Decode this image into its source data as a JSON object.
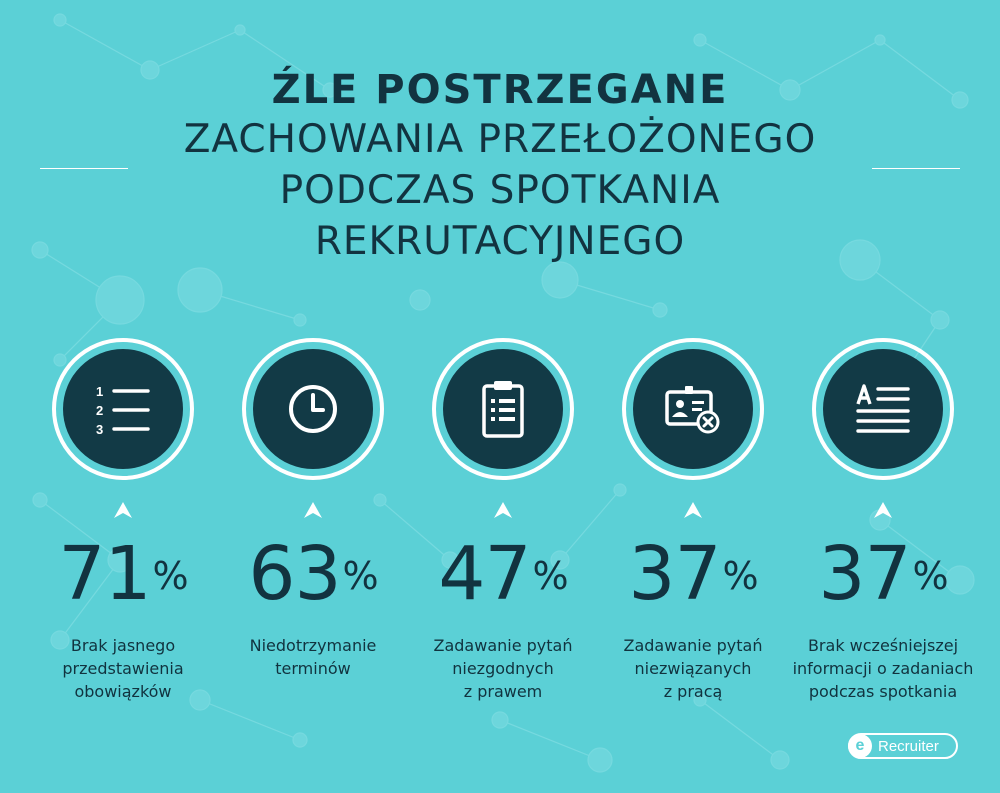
{
  "title": {
    "bold": "ŹLE POSTRZEGANE",
    "line1": "ZACHOWANIA PRZEŁOŻONEGO",
    "line2": "PODCZAS SPOTKANIA",
    "line3": "REKRUTACYJNEGO"
  },
  "colors": {
    "background": "#5bd0d6",
    "dark": "#123a46",
    "ring": "#ffffff"
  },
  "stats": [
    {
      "icon": "numbered-list-icon",
      "number": "71",
      "unit": "%",
      "caption": [
        "Brak jasnego",
        "przedstawienia",
        "obowiązków"
      ]
    },
    {
      "icon": "clock-icon",
      "number": "63",
      "unit": "%",
      "caption": [
        "Niedotrzymanie",
        "terminów"
      ]
    },
    {
      "icon": "clipboard-icon",
      "number": "47",
      "unit": "%",
      "caption": [
        "Zadawanie pytań",
        "niezgodnych",
        "z prawem"
      ]
    },
    {
      "icon": "id-card-remove-icon",
      "number": "37",
      "unit": "%",
      "caption": [
        "Zadawanie pytań",
        "niezwiązanych",
        "z pracą"
      ]
    },
    {
      "icon": "text-document-icon",
      "number": "37",
      "unit": "%",
      "caption": [
        "Brak wcześniejszej",
        "informacji o zadaniach",
        "podczas spotkania"
      ]
    }
  ],
  "logo": {
    "mark": "e",
    "text": "Recruiter"
  }
}
